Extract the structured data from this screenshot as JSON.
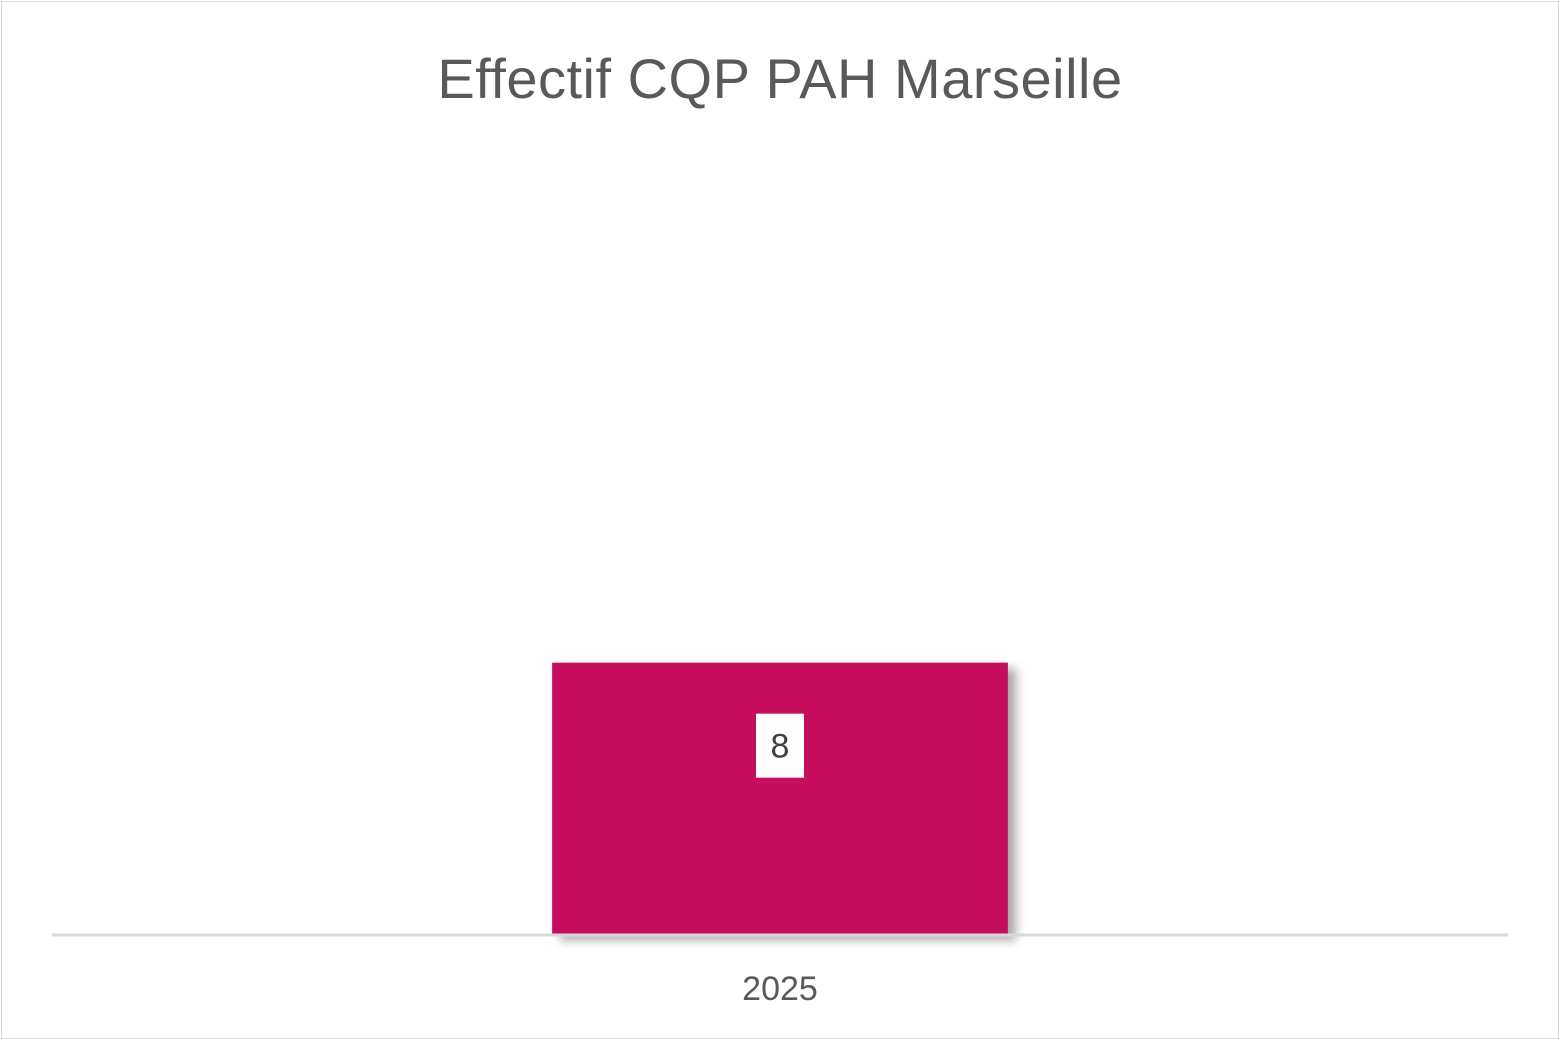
{
  "chart_data": {
    "type": "bar",
    "title": "Effectif CQP PAH Marseille",
    "categories": [
      "2025"
    ],
    "values": [
      8
    ],
    "data_labels": [
      "8"
    ],
    "xlabel": "",
    "ylabel": "",
    "ylim": [
      0,
      24
    ],
    "grid": false,
    "legend": "none",
    "colors": {
      "bar": "#c8085f",
      "axis": "#d9d9d9",
      "text": "#595959",
      "label_bg": "#ffffff"
    }
  }
}
